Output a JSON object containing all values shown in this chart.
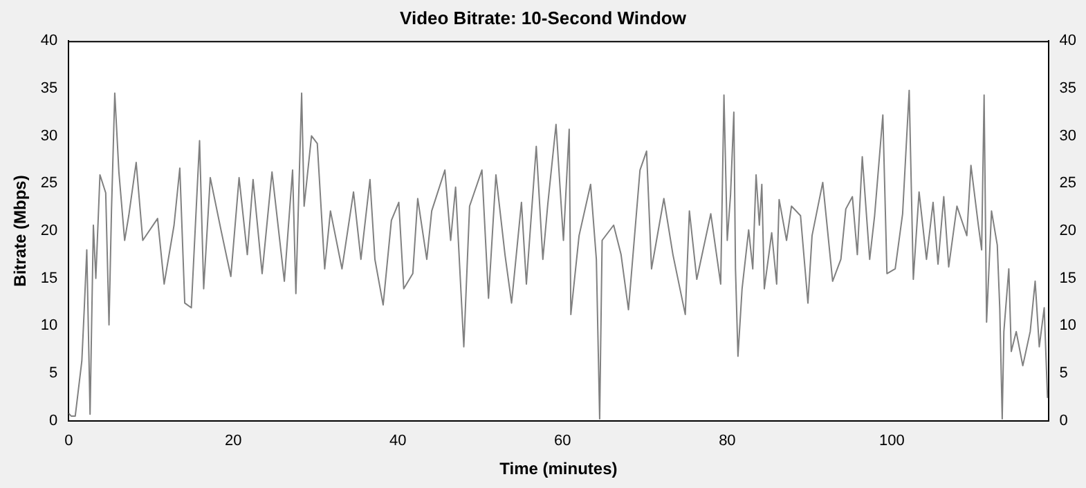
{
  "chart_data": {
    "type": "line",
    "title": "Video Bitrate: 10-Second Window",
    "xlabel": "Time (minutes)",
    "ylabel": "Bitrate (Mbps)",
    "xlim": [
      0,
      119
    ],
    "xticks": [
      0,
      20,
      40,
      60,
      80,
      100
    ],
    "ylim": [
      0,
      40
    ],
    "yticks": [
      0,
      5,
      10,
      15,
      20,
      25,
      30,
      35,
      40
    ],
    "y2lim": [
      0,
      40
    ],
    "y2ticks": [
      0,
      5,
      10,
      15,
      20,
      25,
      30,
      35,
      40
    ],
    "grid": false,
    "legend": false,
    "marker": "none",
    "line_style": "solid",
    "series": [
      {
        "color": "#808080",
        "x": [
          0,
          0.3,
          0.8,
          1.6,
          1.9,
          2.2,
          2.6,
          3.0,
          3.3,
          3.8,
          4.5,
          4.9,
          5.2,
          5.6,
          6.1,
          6.8,
          7.3,
          8.2,
          9.0,
          10.8,
          11.6,
          12.8,
          13.5,
          14.1,
          14.9,
          15.9,
          16.4,
          17.2,
          18.5,
          19.7,
          20.7,
          21.7,
          22.4,
          23.5,
          24.7,
          26.2,
          27.2,
          27.6,
          28.3,
          28.6,
          29.5,
          30.2,
          31.1,
          31.8,
          33.2,
          34.6,
          35.5,
          36.6,
          37.2,
          38.2,
          39.2,
          40.1,
          40.7,
          41.8,
          42.4,
          43.5,
          44.1,
          45.7,
          46.4,
          47.0,
          48.0,
          48.7,
          50.2,
          51.0,
          51.9,
          53.0,
          53.8,
          55.0,
          55.6,
          56.8,
          57.6,
          58.2,
          59.2,
          60.1,
          60.8,
          61.0,
          62.0,
          63.4,
          64.1,
          64.5,
          64.8,
          66.2,
          67.1,
          68.0,
          69.4,
          70.2,
          70.8,
          72.3,
          73.4,
          74.9,
          75.4,
          76.3,
          78.0,
          79.2,
          79.6,
          80.0,
          80.4,
          80.8,
          81.0,
          81.3,
          81.8,
          82.6,
          83.1,
          83.5,
          83.9,
          84.2,
          84.5,
          85.4,
          86.0,
          86.3,
          87.2,
          87.8,
          88.9,
          89.8,
          90.3,
          91.6,
          92.8,
          93.8,
          94.4,
          95.2,
          95.8,
          96.4,
          97.3,
          97.9,
          98.9,
          99.4,
          100.4,
          101.3,
          102.1,
          102.6,
          103.3,
          104.2,
          105.0,
          105.6,
          106.3,
          106.9,
          107.9,
          109.1,
          109.6,
          110.5,
          110.9,
          111.2,
          111.5,
          112.1,
          112.8,
          113.1,
          113.4,
          113.6,
          114.2,
          114.5,
          115.1,
          115.9,
          116.8,
          117.4,
          117.9,
          118.5,
          118.9
        ],
        "values": [
          0.8,
          0.5,
          0.5,
          6.3,
          11.9,
          18,
          0.7,
          20.6,
          15,
          25.9,
          24,
          10.1,
          22.1,
          34.5,
          26.2,
          19,
          21.6,
          27.2,
          19,
          21.3,
          14.4,
          20.6,
          26.6,
          12.4,
          11.9,
          29.5,
          13.9,
          25.6,
          20.1,
          15.2,
          25.6,
          17.5,
          25.4,
          15.5,
          26.2,
          14.7,
          26.4,
          13.4,
          34.5,
          22.6,
          30,
          29.2,
          16,
          22.1,
          16,
          24.1,
          17,
          25.4,
          17,
          12.2,
          21.1,
          23,
          13.9,
          15.5,
          23.4,
          17,
          22.1,
          26.4,
          19,
          24.6,
          7.8,
          22.6,
          26.4,
          12.9,
          25.9,
          17.5,
          12.4,
          23,
          14.4,
          28.9,
          17,
          22.8,
          31.2,
          19,
          30.7,
          11.2,
          19.5,
          24.9,
          17,
          0.2,
          19,
          20.6,
          17.5,
          11.7,
          26.4,
          28.4,
          16,
          23.4,
          17.5,
          11.2,
          22.1,
          14.9,
          21.8,
          14.4,
          34.3,
          19,
          23.8,
          32.5,
          16,
          6.8,
          13.9,
          20.1,
          16,
          25.9,
          20.6,
          24.9,
          13.9,
          19.8,
          14.4,
          23.3,
          19,
          22.6,
          21.6,
          12.4,
          19.5,
          25.1,
          14.7,
          17,
          22.3,
          23.6,
          17.5,
          27.8,
          17,
          21.6,
          32.2,
          15.5,
          16,
          21.8,
          34.8,
          14.9,
          24.1,
          17,
          23,
          16.5,
          23.6,
          16.2,
          22.6,
          19.5,
          26.9,
          20.6,
          18,
          34.3,
          10.4,
          22.1,
          18.5,
          11.9,
          0.2,
          9.4,
          16,
          7.3,
          9.4,
          5.8,
          9.4,
          14.7,
          7.8,
          11.9,
          2.4
        ]
      }
    ]
  }
}
